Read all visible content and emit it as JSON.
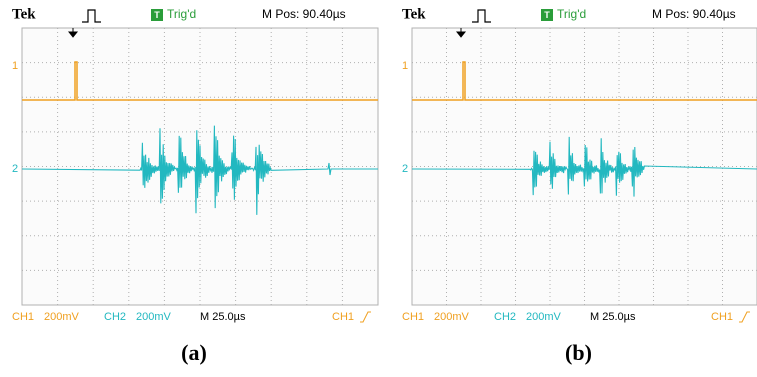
{
  "panels": [
    {
      "caption": "(a)",
      "header": {
        "brand": "Tek",
        "trigger": "T",
        "status": "Trig'd",
        "position": "M Pos: 90.40µs"
      },
      "channel_markers": [
        "1",
        "2"
      ],
      "footer": {
        "ch1": "CH1",
        "ch1_scale": "200mV",
        "ch2": "CH2",
        "ch2_scale": "200mV",
        "timebase": "M 25.0µs",
        "trigger_source": "CH1"
      }
    },
    {
      "caption": "(b)",
      "header": {
        "brand": "Tek",
        "trigger": "T",
        "status": "Trig'd",
        "position": "M Pos: 90.40µs"
      },
      "channel_markers": [
        "1",
        "2"
      ],
      "footer": {
        "ch1": "CH1",
        "ch1_scale": "200mV",
        "ch2": "CH2",
        "ch2_scale": "200mV",
        "timebase": "M 25.0µs",
        "trigger_source": "CH1"
      }
    }
  ]
}
